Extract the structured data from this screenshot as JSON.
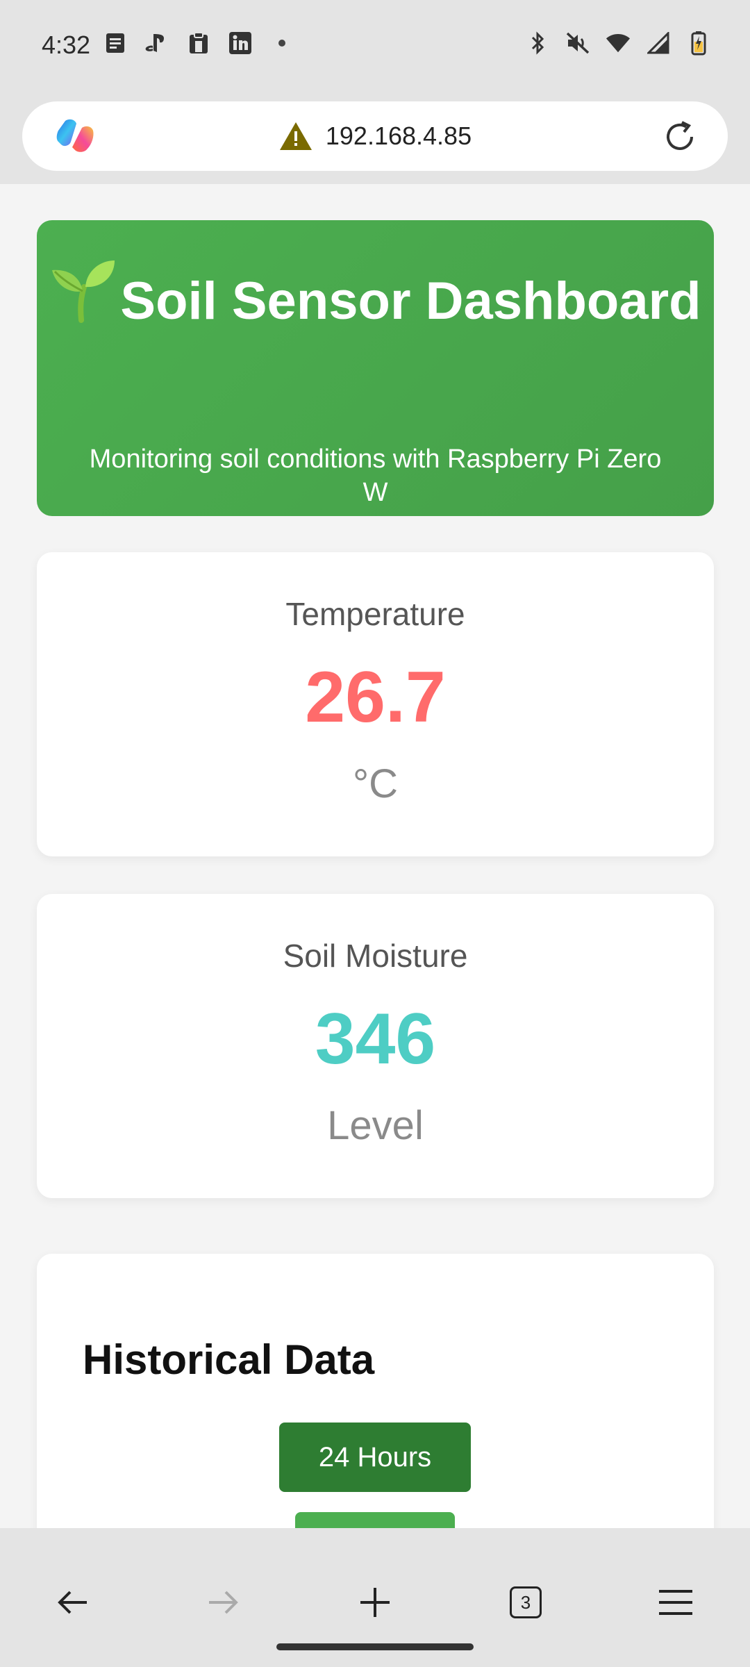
{
  "status_bar": {
    "time": "4:32",
    "left_icons": [
      "notes-icon",
      "playstation-icon",
      "clipboard-icon",
      "linkedin-icon",
      "dot-icon"
    ],
    "right_icons": [
      "bluetooth-icon",
      "mute-icon",
      "wifi-icon",
      "signal-icon",
      "battery-icon"
    ]
  },
  "browser": {
    "url": "192.168.4.85",
    "security_icon": "warning-icon",
    "tab_count": "3"
  },
  "hero": {
    "title": "Soil Sensor Dashboard",
    "subtitle": "Monitoring soil conditions with Raspberry Pi Zero W",
    "color": "#4caf50"
  },
  "cards": {
    "temperature": {
      "label": "Temperature",
      "value": "26.7",
      "unit": "°C",
      "color": "#ff6b6b"
    },
    "moisture": {
      "label": "Soil Moisture",
      "value": "346",
      "unit": "Level",
      "color": "#4ecdc4"
    }
  },
  "history": {
    "title": "Historical Data",
    "range_button": "24 Hours"
  }
}
